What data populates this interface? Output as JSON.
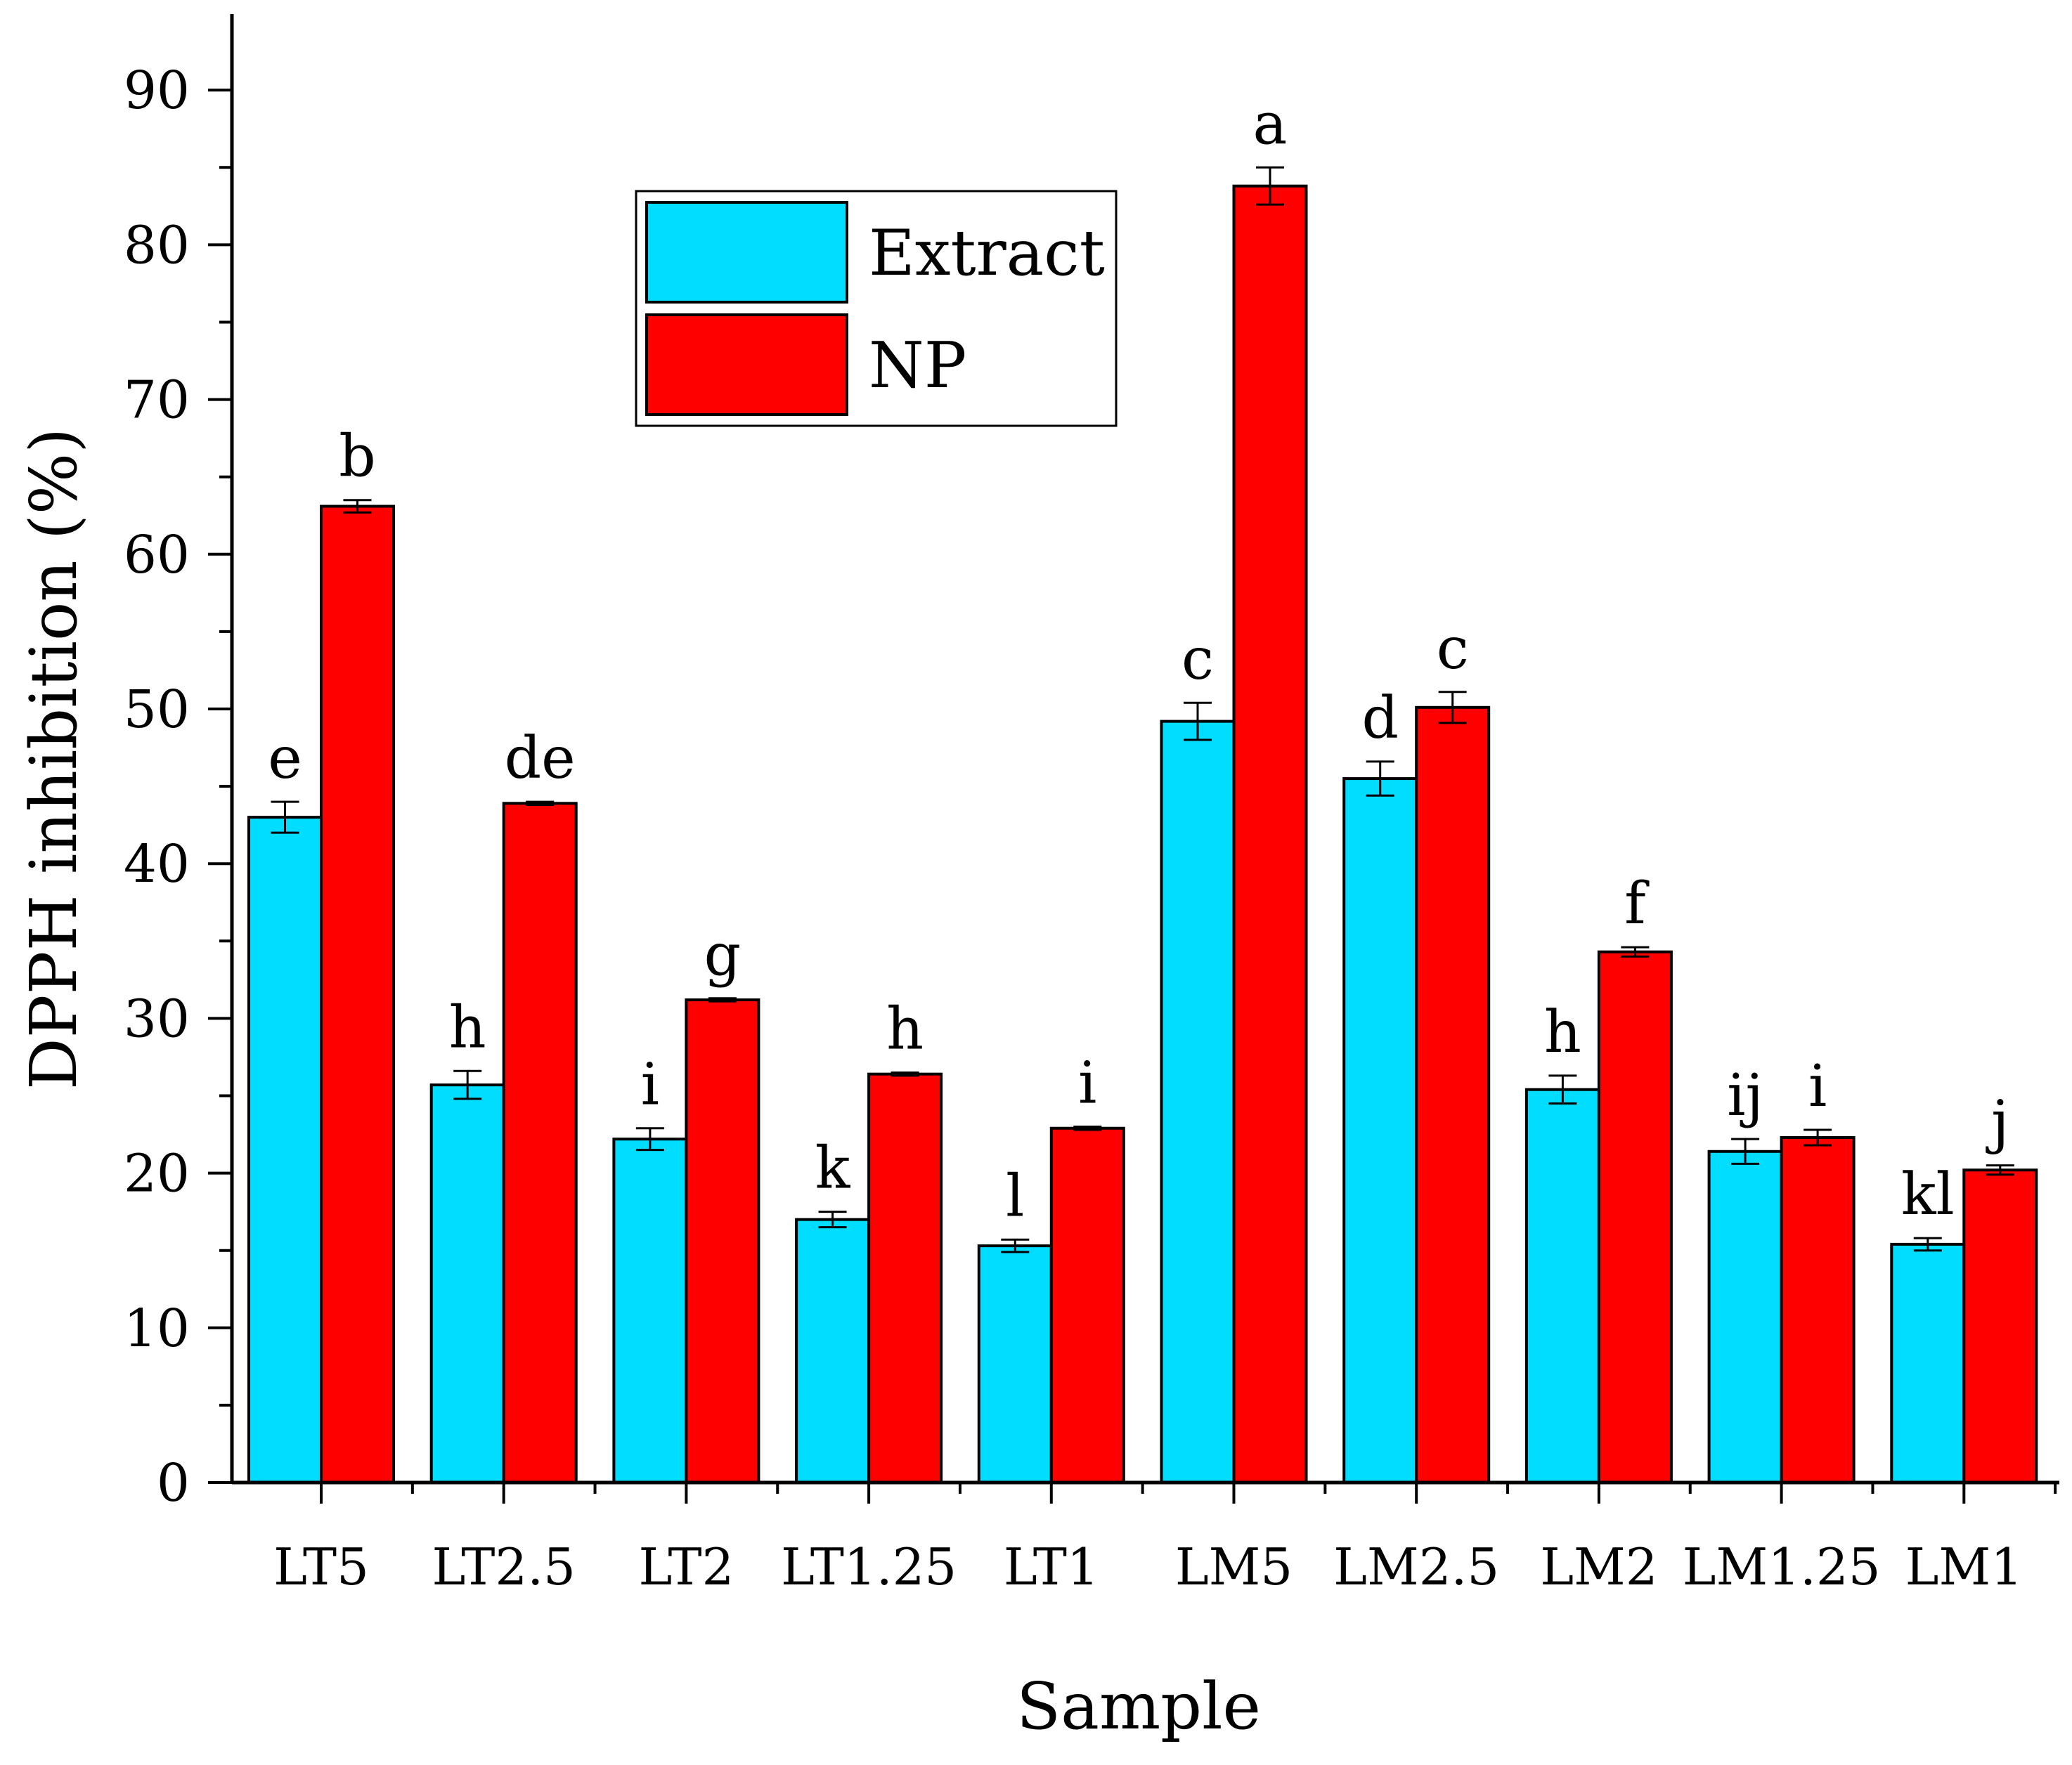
{
  "chart_data": {
    "type": "bar",
    "title": "",
    "xlabel": "Sample",
    "ylabel": "DPPH inhibition (%)",
    "ylim": [
      0,
      95
    ],
    "yticks": [
      0,
      10,
      20,
      30,
      40,
      50,
      60,
      70,
      80,
      90
    ],
    "categories": [
      "LT5",
      "LT2.5",
      "LT2",
      "LT1.25",
      "LT1",
      "LM5",
      "LM2.5",
      "LM2",
      "LM1.25",
      "LM1"
    ],
    "legend_position": "top-center",
    "series": [
      {
        "name": "Extract",
        "color": "#00ddff",
        "values": [
          43.0,
          25.7,
          22.2,
          17.0,
          15.3,
          49.2,
          45.5,
          25.4,
          21.4,
          15.4
        ],
        "errors": [
          1.0,
          0.9,
          0.7,
          0.5,
          0.4,
          1.2,
          1.1,
          0.9,
          0.8,
          0.4
        ],
        "labels": [
          "e",
          "h",
          "i",
          "k",
          "l",
          "c",
          "d",
          "h",
          "ij",
          "kl"
        ]
      },
      {
        "name": "NP",
        "color": "#ff0000",
        "values": [
          63.1,
          43.9,
          31.2,
          26.4,
          22.9,
          83.8,
          50.1,
          34.3,
          22.3,
          20.2
        ],
        "errors": [
          0.4,
          0.1,
          0.1,
          0.1,
          0.1,
          1.2,
          1.0,
          0.3,
          0.5,
          0.3
        ],
        "labels": [
          "b",
          "de",
          "g",
          "h",
          "i",
          "a",
          "c",
          "f",
          "i",
          "j"
        ]
      }
    ]
  }
}
